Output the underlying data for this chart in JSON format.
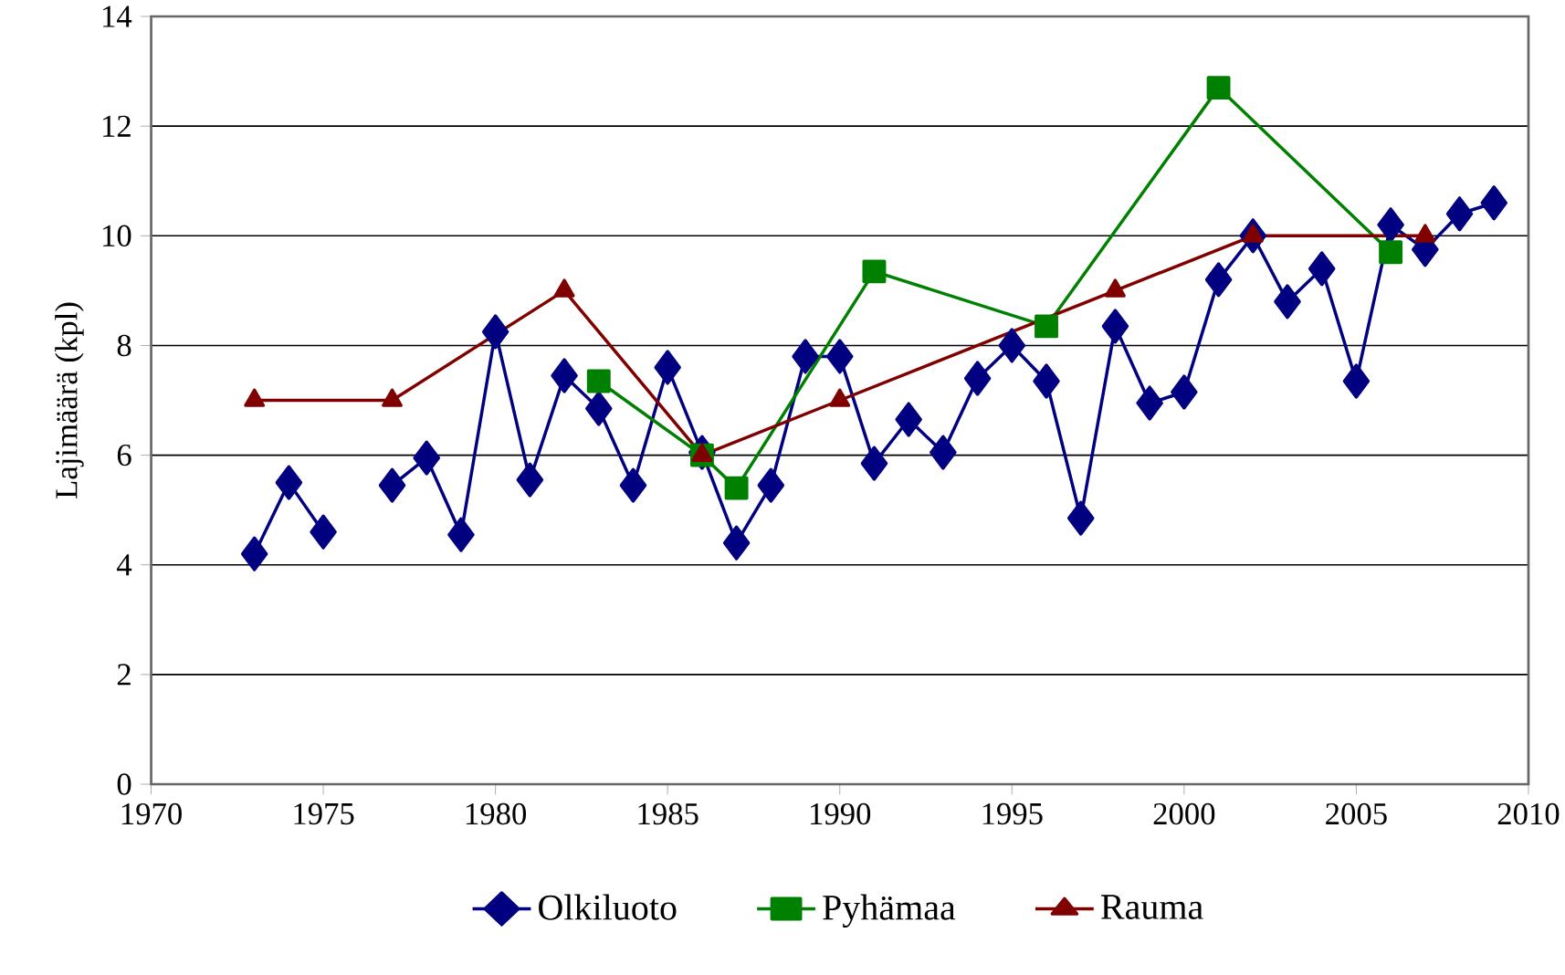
{
  "chart_data": {
    "type": "line",
    "ylabel": "Lajimäärä (kpl)",
    "xlim": [
      1970,
      2010
    ],
    "xticks": [
      1970,
      1975,
      1980,
      1985,
      1990,
      1995,
      2000,
      2005,
      2010
    ],
    "ylim": [
      0,
      14
    ],
    "yticks": [
      0,
      2,
      4,
      6,
      8,
      10,
      12,
      14
    ],
    "grid": "y",
    "legend": "bottom",
    "series": [
      {
        "name": "Olkiluoto",
        "color": "#000080",
        "marker": "diamond",
        "x": [
          1973,
          1974,
          1975,
          1976,
          1977,
          1978,
          1979,
          1980,
          1981,
          1982,
          1983,
          1984,
          1985,
          1986,
          1987,
          1988,
          1989,
          1990,
          1991,
          1992,
          1993,
          1994,
          1995,
          1996,
          1997,
          1998,
          1999,
          2000,
          2001,
          2002,
          2003,
          2004,
          2005,
          2006,
          2007,
          2008,
          2009
        ],
        "values": [
          4.2,
          5.5,
          4.6,
          null,
          5.45,
          5.95,
          4.55,
          8.25,
          5.55,
          7.45,
          6.85,
          5.45,
          7.6,
          6.05,
          4.4,
          5.45,
          7.8,
          7.8,
          5.85,
          6.65,
          6.05,
          7.4,
          8.0,
          7.35,
          4.85,
          8.35,
          6.95,
          7.15,
          9.2,
          10.0,
          8.8,
          9.4,
          7.35,
          10.2,
          9.75,
          10.4,
          10.6
        ]
      },
      {
        "name": "Pyhämaa",
        "color": "#008000",
        "marker": "square",
        "x": [
          1983,
          1986,
          1987,
          1991,
          1996,
          2001,
          2006
        ],
        "values": [
          7.35,
          6.0,
          5.4,
          9.35,
          8.35,
          12.7,
          9.7
        ]
      },
      {
        "name": "Rauma",
        "color": "#800000",
        "marker": "triangle",
        "x": [
          1973,
          1977,
          1982,
          1986,
          1990,
          1998,
          2002,
          2007
        ],
        "values": [
          7,
          7,
          9,
          6,
          7,
          9,
          10,
          10
        ]
      }
    ]
  }
}
